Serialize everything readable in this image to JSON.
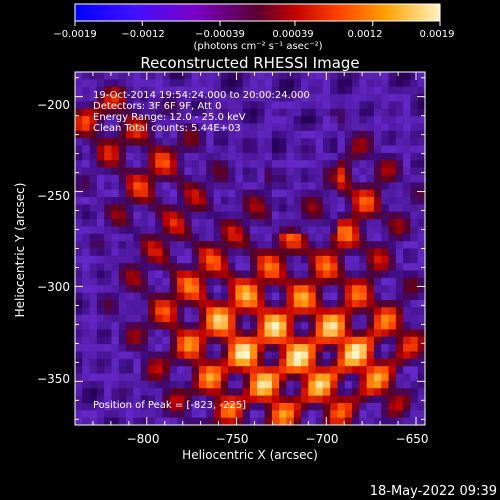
{
  "chart_data": {
    "type": "heatmap",
    "title": "Reconstructed RHESSI Image",
    "xlabel": "Heliocentric X (arcsec)",
    "ylabel": "Heliocentric Y (arcsec)",
    "xlim": [
      -840,
      -645
    ],
    "ylim": [
      -373,
      -187
    ],
    "xticks": [
      -800,
      -750,
      -700,
      -650
    ],
    "yticks": [
      -200,
      -250,
      -300,
      -350
    ],
    "xtick_labels": [
      "−800",
      "−750",
      "−700",
      "−650"
    ],
    "ytick_labels": [
      "−200",
      "−250",
      "−300",
      "−350"
    ],
    "colorbar": {
      "min": -0.0019,
      "max": 0.0019,
      "ticks": [
        -0.0019,
        -0.0012,
        -0.00039,
        0.00039,
        0.0012,
        0.0019
      ],
      "tick_labels": [
        "−0.0019",
        "−0.0012",
        "−0.00039",
        "0.00039",
        "0.0012",
        "0.0019"
      ],
      "units_text": "(photons cm⁻² s⁻¹ asec⁻²)"
    },
    "info_lines": [
      "19-Oct-2014 19:54:24.000 to 20:00:24.000",
      "Detectors: 3F 6F 9F, Att 0",
      "Energy Range: 12.0 - 25.0 keV",
      "Clean    Total counts: 5.44E+03"
    ],
    "peak_text": "Position of Peak = [-823, -225]"
  },
  "footer_date": "18-May-2022 09:39",
  "colors": {
    "background": "#000000",
    "text": "#ffffff",
    "axis": "#ffffff"
  }
}
